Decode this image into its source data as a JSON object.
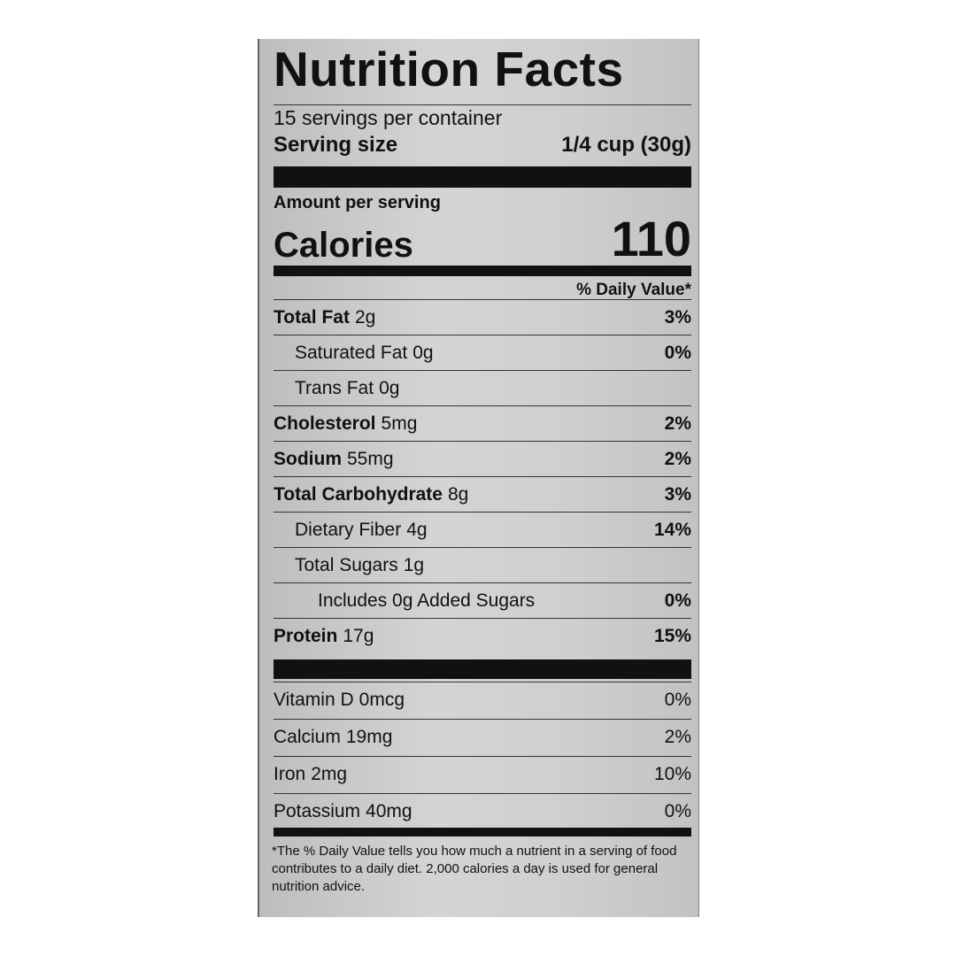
{
  "title": "Nutrition Facts",
  "servings_per_container": "15 servings per container",
  "serving_size_label": "Serving size",
  "serving_size_value": "1/4 cup (30g)",
  "amount_per_serving": "Amount per serving",
  "calories_label": "Calories",
  "calories_value": "110",
  "dv_header": "% Daily Value*",
  "nutrients": [
    {
      "name": "Total Fat",
      "amount": "2g",
      "dv": "3%"
    },
    {
      "name": "Saturated Fat",
      "amount": "0g",
      "dv": "0%"
    },
    {
      "name": "Trans Fat",
      "amount": "0g",
      "dv": ""
    },
    {
      "name": "Cholesterol",
      "amount": "5mg",
      "dv": "2%"
    },
    {
      "name": "Sodium",
      "amount": "55mg",
      "dv": "2%"
    },
    {
      "name": "Total Carbohydrate",
      "amount": "8g",
      "dv": "3%"
    },
    {
      "name": "Dietary Fiber",
      "amount": "4g",
      "dv": "14%"
    },
    {
      "name": "Total Sugars",
      "amount": "1g",
      "dv": ""
    },
    {
      "name": "Includes 0g Added Sugars",
      "amount": "",
      "dv": "0%"
    },
    {
      "name": "Protein",
      "amount": "17g",
      "dv": "15%"
    }
  ],
  "vitamins": [
    {
      "name": "Vitamin D",
      "amount": "0mcg",
      "dv": "0%"
    },
    {
      "name": "Calcium",
      "amount": "19mg",
      "dv": "2%"
    },
    {
      "name": "Iron",
      "amount": "2mg",
      "dv": "10%"
    },
    {
      "name": "Potassium",
      "amount": "40mg",
      "dv": "0%"
    }
  ],
  "footnote": "*The % Daily Value tells you how much a nutrient in a serving of food contributes to a daily diet. 2,000 calories a day is used for general nutrition advice."
}
